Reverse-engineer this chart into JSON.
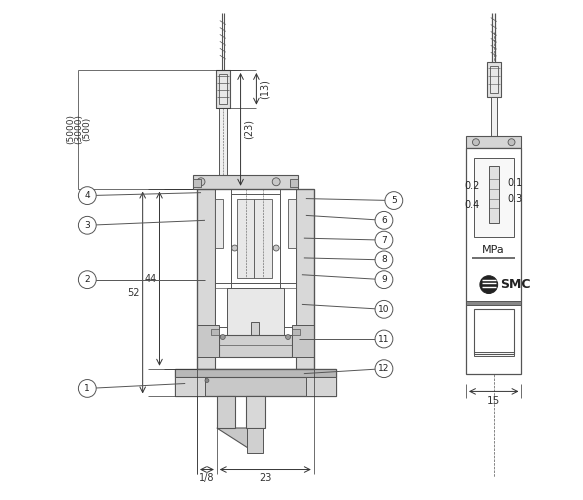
{
  "bg_color": "#ffffff",
  "lc": "#555555",
  "dc": "#222222",
  "fg": "#cccccc",
  "lg": "#e8e8e8",
  "mg": "#aaaaaa",
  "dim_color": "#333333",
  "callouts": [
    "1",
    "2",
    "3",
    "4",
    "5",
    "6",
    "7",
    "8",
    "9",
    "10",
    "11",
    "12"
  ],
  "gauge_vals": [
    "0.2",
    "0.4",
    "0.1",
    "0.3"
  ],
  "mpa": "MPa",
  "smc": "SMC",
  "dims": {
    "d1": "1/8",
    "d2": "23",
    "d3": "44",
    "d4": "52",
    "d5": "(13)",
    "d6": "(23)",
    "d7_a": "(5000)",
    "d7_b": "(3000)",
    "d7_c": "(500)",
    "d8": "15"
  }
}
